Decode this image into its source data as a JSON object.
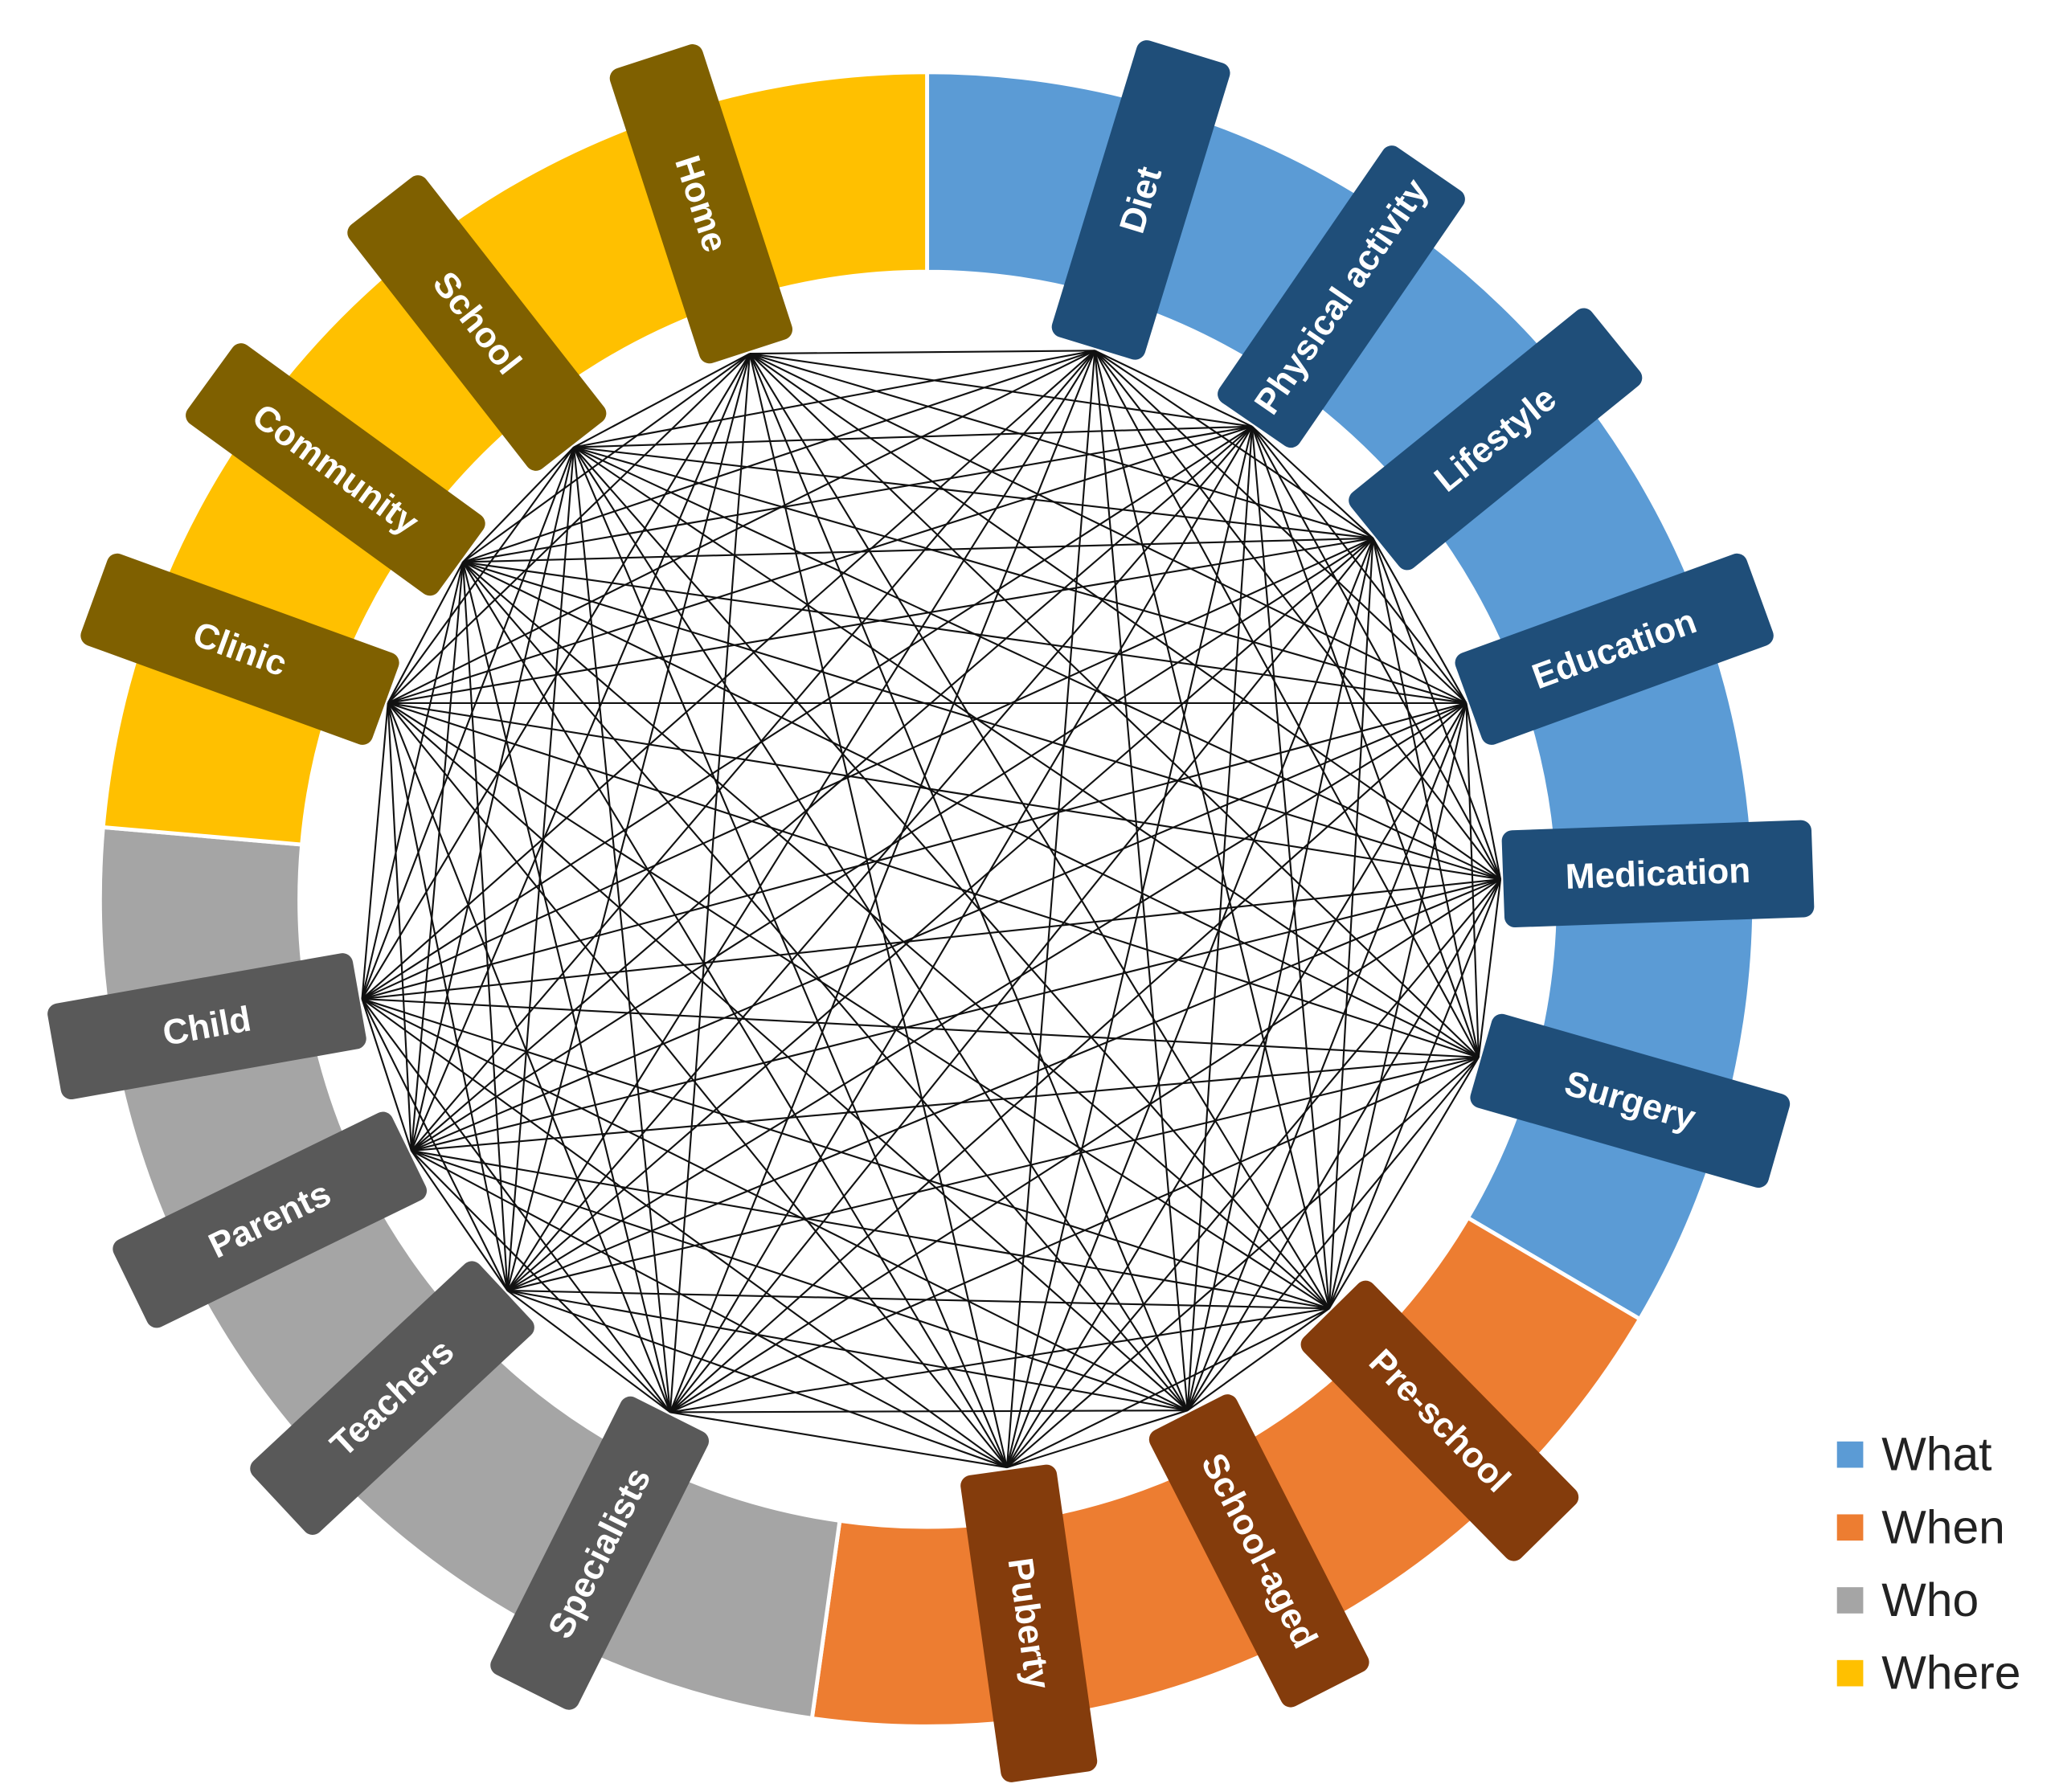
{
  "groups": [
    {
      "name": "What",
      "color": "#5b9bd5",
      "label_color": "#1f4e79",
      "nodes": [
        "Diet",
        "Physical activity",
        "Lifestyle",
        "Education",
        "Medication",
        "Surgery"
      ]
    },
    {
      "name": "When",
      "color": "#ed7d31",
      "label_color": "#843c0c",
      "nodes": [
        "Pre-school",
        "School-aged",
        "Puberty"
      ]
    },
    {
      "name": "Who",
      "color": "#a5a5a5",
      "label_color": "#595959",
      "nodes": [
        "Specialists",
        "Teachers",
        "Parents",
        "Child"
      ]
    },
    {
      "name": "Where",
      "color": "#ffc000",
      "label_color": "#7f6000",
      "nodes": [
        "Clinic",
        "Community",
        "School",
        "Home"
      ]
    }
  ]
}
